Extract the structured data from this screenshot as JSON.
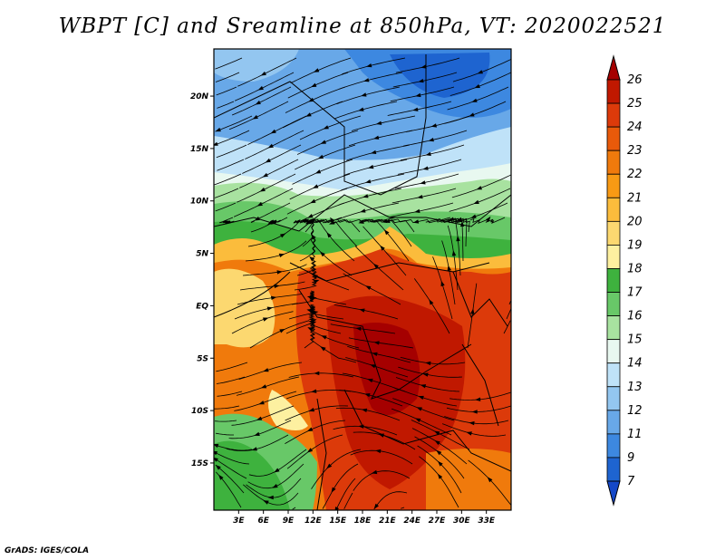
{
  "title": "WBPT [C] and Sreamline at 850hPa, VT: 2020022521",
  "footer": "GrADS: IGES/COLA",
  "map": {
    "type": "contour-fill-with-streamlines",
    "variable": "Wet-bulb potential temperature",
    "units": "C",
    "level": "850hPa",
    "valid_time": "2020022521",
    "lon_range": [
      0,
      36
    ],
    "lat_range": [
      -19.5,
      24.5
    ],
    "lon_ticks": [
      "3E",
      "6E",
      "9E",
      "12E",
      "15E",
      "18E",
      "21E",
      "24E",
      "27E",
      "30E",
      "33E"
    ],
    "lon_tick_values": [
      3,
      6,
      9,
      12,
      15,
      18,
      21,
      24,
      27,
      30,
      33
    ],
    "lat_ticks": [
      "20N",
      "15N",
      "10N",
      "5N",
      "EQ",
      "5S",
      "10S",
      "15S"
    ],
    "lat_tick_values": [
      20,
      15,
      10,
      5,
      0,
      -5,
      -10,
      -15
    ]
  },
  "colorbar": {
    "labels": [
      "26",
      "25",
      "24",
      "23",
      "22",
      "21",
      "20",
      "19",
      "18",
      "17",
      "16",
      "15",
      "14",
      "13",
      "12",
      "11",
      "9",
      "7"
    ],
    "colors": [
      "#a50000",
      "#c01800",
      "#dc3a0a",
      "#e85a0a",
      "#f07a0c",
      "#f89a14",
      "#fbbc3c",
      "#fcd870",
      "#fdf0a0",
      "#3eb23e",
      "#68c868",
      "#a8e2a0",
      "#e8f8f0",
      "#bfe2f8",
      "#93c6f0",
      "#68a8e8",
      "#3d88e0",
      "#1e64d0",
      "#1448c8"
    ]
  }
}
